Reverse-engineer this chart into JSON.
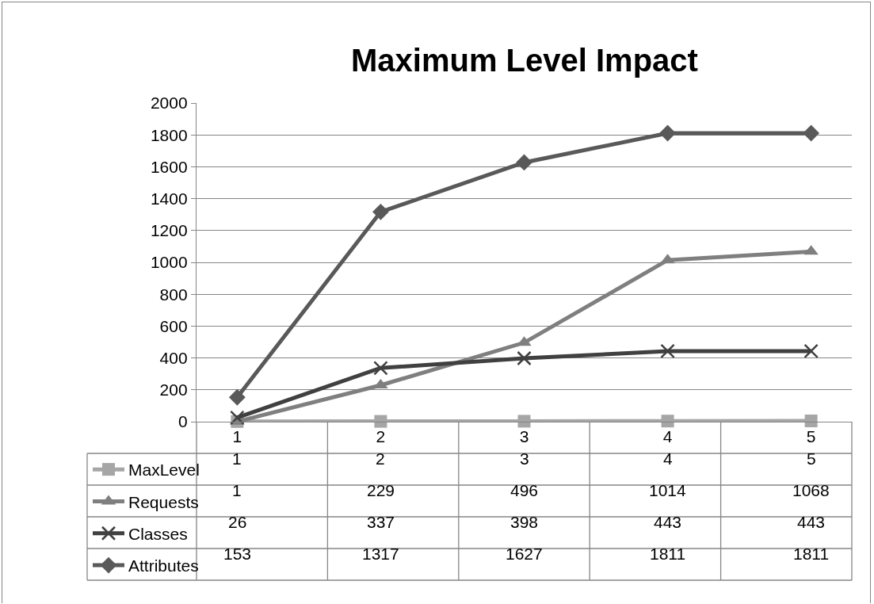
{
  "chart_data": {
    "type": "line",
    "title": "Maximum Level Impact",
    "categories": [
      "1",
      "2",
      "3",
      "4",
      "5"
    ],
    "series": [
      {
        "name": "MaxLevel",
        "color": "#a6a6a6",
        "marker": "square",
        "values": [
          1,
          2,
          3,
          4,
          5
        ]
      },
      {
        "name": "Requests",
        "color": "#7f7f7f",
        "marker": "triangle",
        "values": [
          1,
          229,
          496,
          1014,
          1068
        ]
      },
      {
        "name": "Classes",
        "color": "#404040",
        "marker": "cross",
        "values": [
          26,
          337,
          398,
          443,
          443
        ]
      },
      {
        "name": "Attributes",
        "color": "#595959",
        "marker": "diamond",
        "values": [
          153,
          1317,
          1627,
          1811,
          1811
        ]
      }
    ],
    "ylim": [
      0,
      2000
    ],
    "yticks": [
      0,
      200,
      400,
      600,
      800,
      1000,
      1200,
      1400,
      1600,
      1800,
      2000
    ],
    "grid": "y",
    "legend": "bottom left",
    "data_labels": true,
    "line_style": "solid"
  }
}
